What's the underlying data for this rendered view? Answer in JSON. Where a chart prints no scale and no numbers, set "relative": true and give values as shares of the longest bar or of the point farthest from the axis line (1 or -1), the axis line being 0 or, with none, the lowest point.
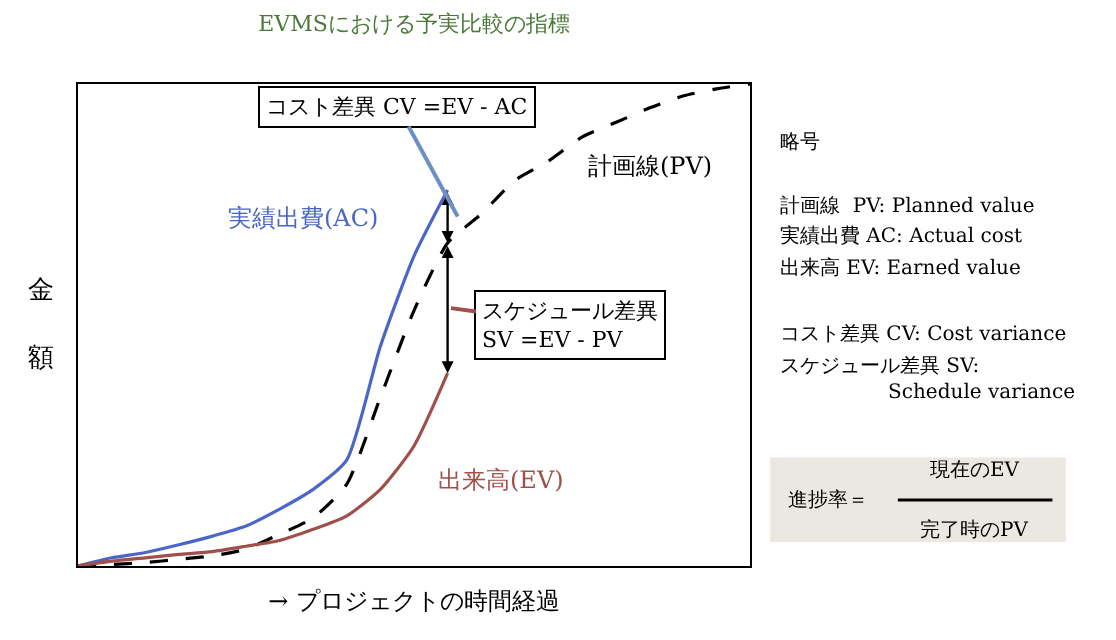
{
  "chart_data": {
    "type": "line",
    "title": "EVMSにおける予実比較の指標",
    "xlabel": "→ プロジェクトの時間経過",
    "ylabel": "金額",
    "relative": true,
    "legend": false,
    "grid": false,
    "marker": "none",
    "categories": [
      null,
      null,
      null,
      null,
      null,
      null,
      null,
      null,
      null,
      null,
      null,
      null,
      null,
      null,
      null,
      null,
      null,
      null,
      null,
      null,
      null
    ],
    "series": [
      {
        "name": "実績出費(AC)",
        "color": "#4a66c8",
        "line_style": "solid",
        "values": [
          0,
          0.017,
          0.028,
          0.044,
          0.062,
          0.083,
          0.118,
          0.159,
          0.22,
          0.456,
          0.643,
          0.78,
          null,
          null,
          null,
          null,
          null,
          null,
          null,
          null,
          null
        ]
      },
      {
        "name": "計画線(PV)",
        "color": "#000000",
        "line_style": "dashed",
        "values": [
          0,
          0.003,
          0.007,
          0.014,
          0.021,
          0.035,
          0.066,
          0.1,
          0.17,
          0.35,
          0.53,
          0.67,
          0.73,
          0.8,
          0.84,
          0.89,
          0.92,
          0.95,
          0.975,
          0.99,
          1
        ]
      },
      {
        "name": "出来高(EV)",
        "color": "#a0504a",
        "line_style": "solid",
        "values": [
          0,
          0.01,
          0.017,
          0.024,
          0.03,
          0.041,
          0.053,
          0.076,
          0.104,
          0.159,
          0.249,
          0.4,
          null,
          null,
          null,
          null,
          null,
          null,
          null,
          null,
          null
        ]
      }
    ],
    "annotations": [
      "コスト差異 CV =EV - AC",
      "スケジュール差異\nSV =EV - PV",
      "略号",
      "計画線  PV: Planned value",
      "実績出費 AC: Actual cost",
      "出来高 EV: Earned value",
      "コスト差異 CV: Cost variance",
      "スケジュール差異 SV:\nSchedule variance",
      "進捗率＝",
      "現在のEV",
      "完了時のPV"
    ]
  }
}
